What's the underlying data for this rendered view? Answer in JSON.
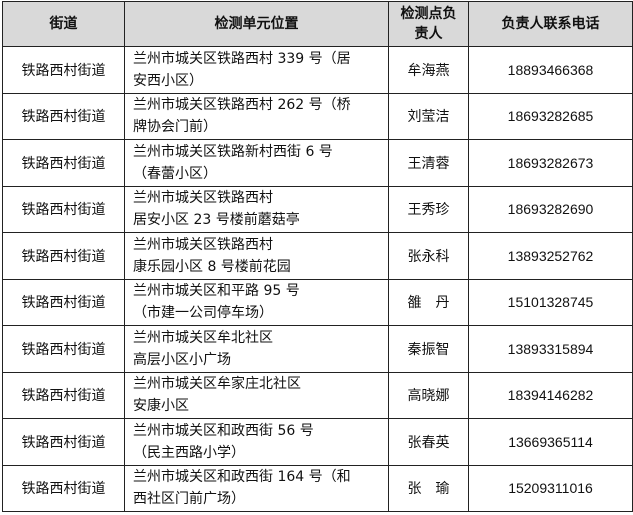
{
  "headers": [
    "街道",
    "检测单元位置",
    "检测点负责人",
    "负责人联系电话"
  ],
  "rows": [
    {
      "street": "铁路西村街道",
      "address": [
        "兰州市城关区铁路西村 339 号（居",
        "安西小区）"
      ],
      "person": "牟海燕",
      "phone": "18893466368"
    },
    {
      "street": "铁路西村街道",
      "address": [
        "兰州市城关区铁路西村 262 号（桥",
        "牌协会门前）"
      ],
      "person": "刘莹洁",
      "phone": "18693282685"
    },
    {
      "street": "铁路西村街道",
      "address": [
        "兰州市城关区铁路新村西街 6 号",
        "（春蕾小区）"
      ],
      "person": "王清蓉",
      "phone": "18693282673"
    },
    {
      "street": "铁路西村街道",
      "address": [
        "兰州市城关区铁路西村",
        "居安小区 23 号楼前蘑菇亭"
      ],
      "person": "王秀珍",
      "phone": "18693282690"
    },
    {
      "street": "铁路西村街道",
      "address": [
        "兰州市城关区铁路西村",
        "康乐园小区 8 号楼前花园"
      ],
      "person": "张永科",
      "phone": "13893252762"
    },
    {
      "street": "铁路西村街道",
      "address": [
        "兰州市城关区和平路 95 号",
        "（市建一公司停车场）"
      ],
      "person": "雒　丹",
      "phone": "15101328745"
    },
    {
      "street": "铁路西村街道",
      "address": [
        "兰州市城关区牟北社区",
        "高层小区小广场"
      ],
      "person": "秦振智",
      "phone": "13893315894"
    },
    {
      "street": "铁路西村街道",
      "address": [
        "兰州市城关区牟家庄北社区",
        "安康小区"
      ],
      "person": "高晓娜",
      "phone": "18394146282"
    },
    {
      "street": "铁路西村街道",
      "address": [
        "兰州市城关区和政西街 56 号",
        "（民主西路小学）"
      ],
      "person": "张春英",
      "phone": "13669365114"
    },
    {
      "street": "铁路西村街道",
      "address": [
        "兰州市城关区和政西街 164 号（和",
        "西社区门前广场）"
      ],
      "person": "张　瑜",
      "phone": "15209311016"
    }
  ]
}
